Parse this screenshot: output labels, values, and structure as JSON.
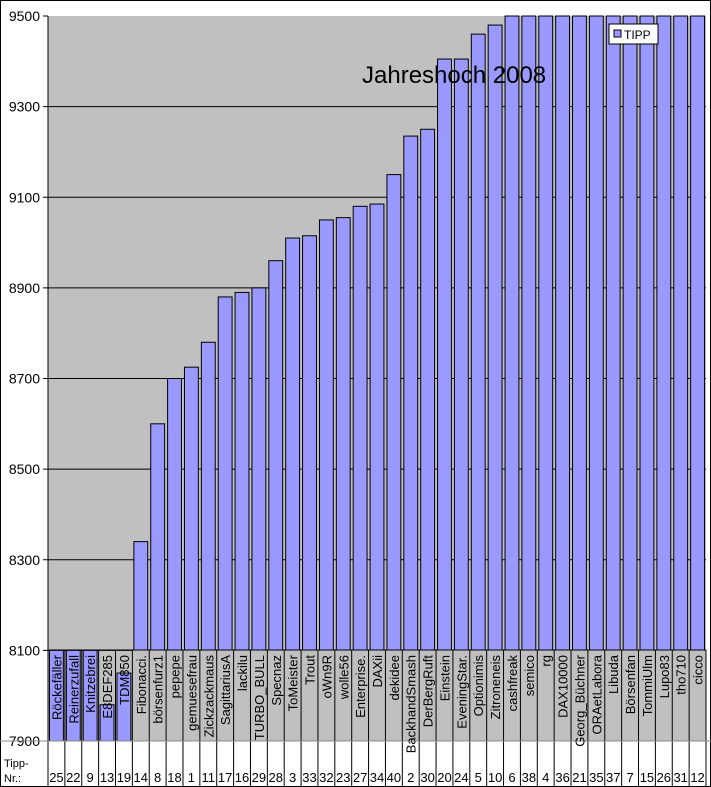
{
  "chart_data": {
    "type": "bar",
    "title": "Jahreshoch 2008",
    "legend": {
      "entries": [
        "TIPP"
      ],
      "position": "top-right"
    },
    "ylim": [
      7900,
      9500
    ],
    "yticks": [
      7900,
      8100,
      8300,
      8500,
      8700,
      8900,
      9100,
      9300,
      9500
    ],
    "grid": true,
    "row_label": "Tipp-Nr.:",
    "categories": [
      "Röckefäller",
      "Reinerzufall",
      "Knitzebrei",
      "E8DEF285",
      "TDM850",
      "Fibonacci.",
      "börsenfurz1",
      "pepepe",
      "gemuesefrau",
      "Zickzackmaus",
      "SagittariusA",
      "lackilu",
      "TURBO_BULL",
      "Specnaz",
      "ToMeister",
      "Trout",
      "oWn9R",
      "wolle56",
      "Enterprise.",
      "DAXii",
      "dekidee",
      "BackhandSmash",
      "DerBergRuft",
      "Einstein",
      "EveningStar.",
      "Optionimis",
      "Zitroneneis",
      "cashfreak",
      "semico",
      "rg",
      "DAX10000",
      "Georg_Büchner",
      "ORAetLabora",
      "Libuda",
      "Börsenfan",
      "TommiUlm",
      "Lupo83",
      "tho710",
      "cicco"
    ],
    "tipp_nr": [
      "25",
      "22",
      "9",
      "13",
      "19",
      "14",
      "8",
      "18",
      "1",
      "11",
      "17",
      "16",
      "29",
      "28",
      "3",
      "33",
      "32",
      "23",
      "27",
      "34",
      "40",
      "2",
      "30",
      "20",
      "24",
      "5",
      "10",
      "6",
      "38",
      "4",
      "36",
      "21",
      "35",
      "37",
      "7",
      "15",
      "26",
      "31",
      "12"
    ],
    "series": [
      {
        "name": "TIPP",
        "values": [
          8100,
          8100,
          8100,
          7980,
          8050,
          8340,
          8600,
          8700,
          8725,
          8780,
          8880,
          8890,
          8900,
          8960,
          9010,
          9015,
          9050,
          9055,
          9080,
          9085,
          9150,
          9235,
          9250,
          9405,
          9405,
          9460,
          9480,
          9500,
          9500,
          9500,
          9500,
          9500,
          9500,
          9500,
          9500,
          9500,
          9500,
          9500,
          9500
        ]
      }
    ],
    "colors": {
      "bar": "#9999FF",
      "plot_bg": "#C0C0C0"
    }
  }
}
